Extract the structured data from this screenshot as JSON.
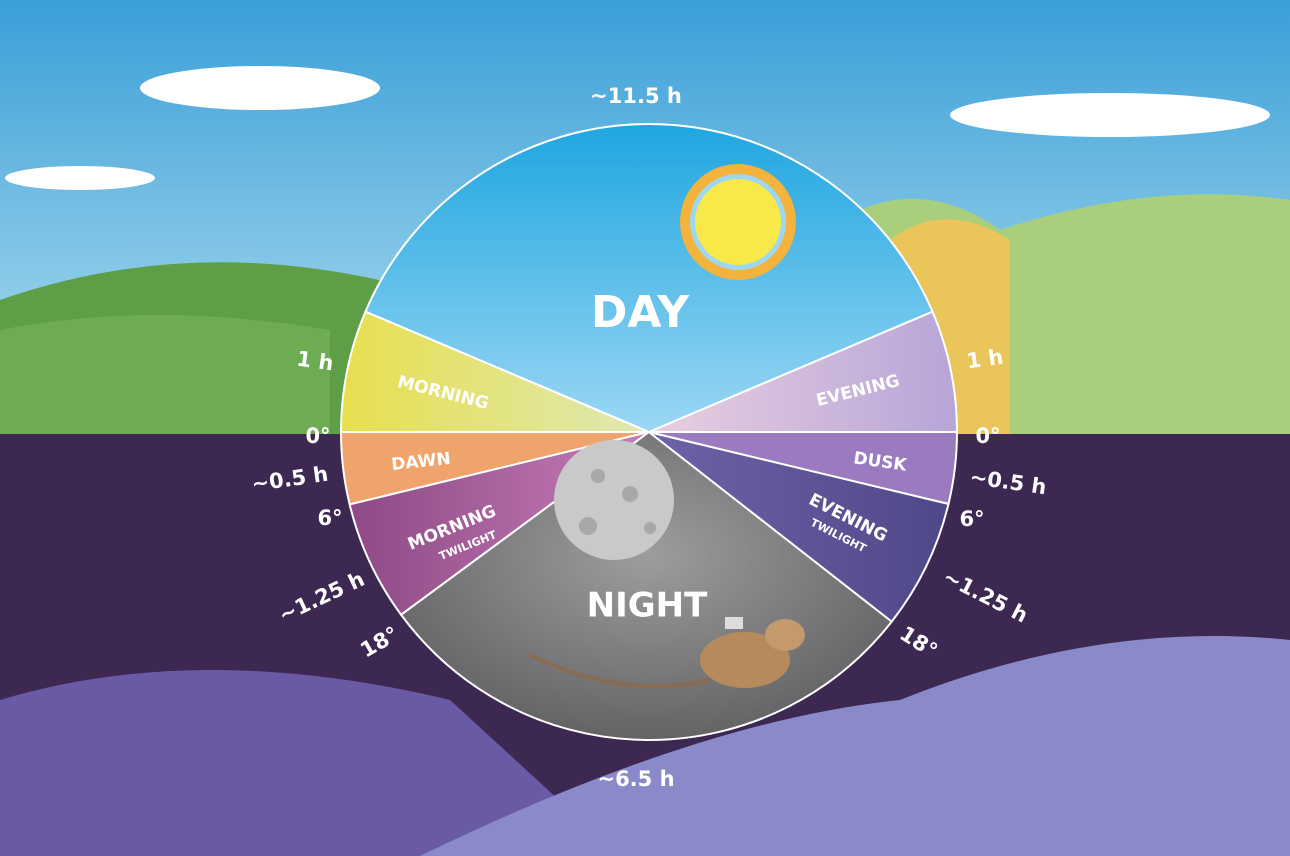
{
  "top_label": "~11.5 h",
  "bottom_label": "~6.5 h",
  "segments": {
    "day": "DAY",
    "night": "NIGHT",
    "morning": "MORNING",
    "evening": "EVENING",
    "dawn": "DAWN",
    "dusk": "DUSK",
    "morning_twilight": [
      "MORNING",
      "TWILIGHT"
    ],
    "evening_twilight": [
      "EVENING",
      "TWILIGHT"
    ]
  },
  "left_scale": [
    "1 h",
    "0°",
    "~0.5 h",
    "6°",
    "~1.25 h",
    "18°"
  ],
  "right_scale": [
    "1 h",
    "0°",
    "~0.5 h",
    "6°",
    "~1.25 h",
    "18°"
  ]
}
